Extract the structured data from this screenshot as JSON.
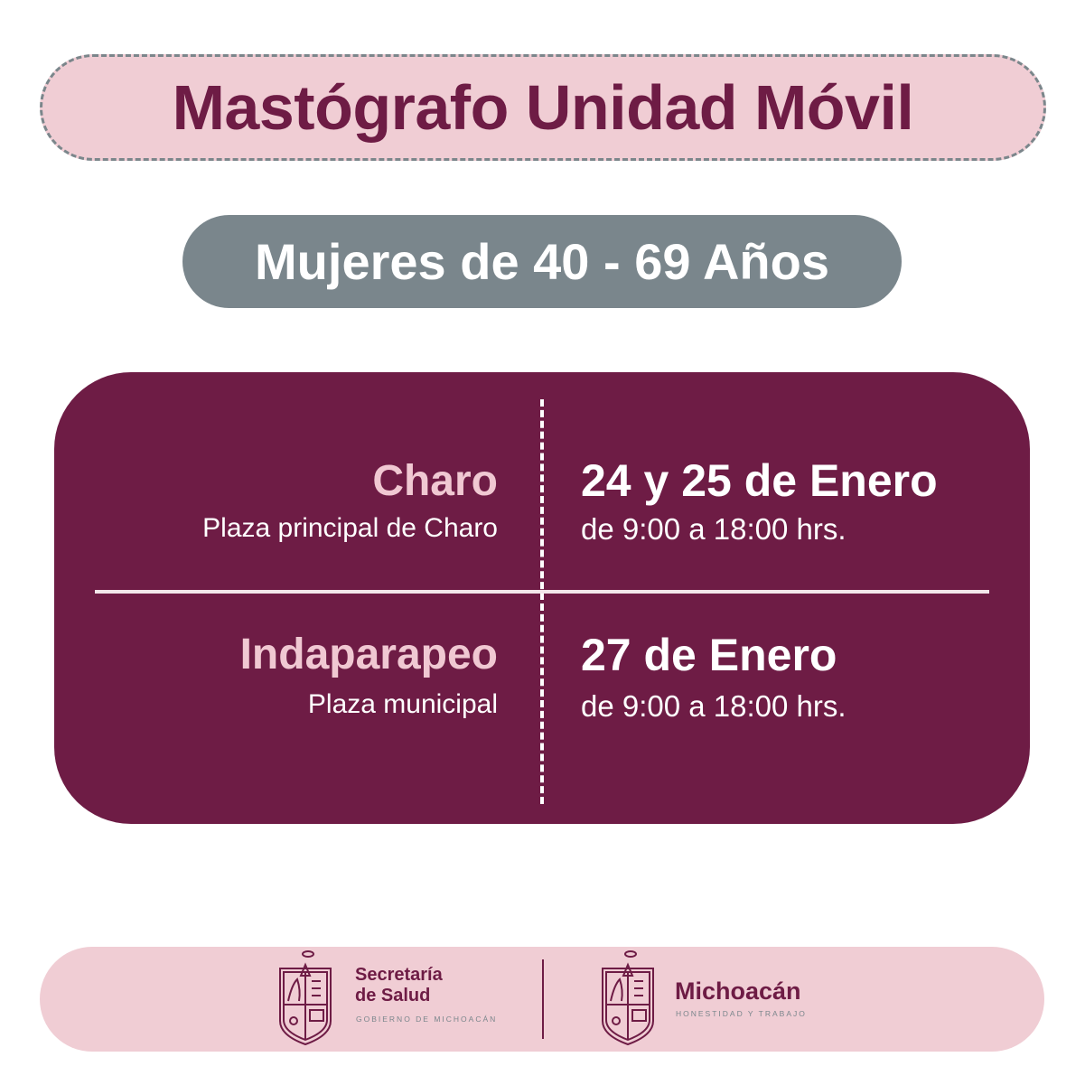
{
  "title": "Mastógrafo Unidad Móvil",
  "audience": "Mujeres de 40 - 69 Años",
  "locations": [
    {
      "name": "Charo",
      "address": "Plaza principal de Charo",
      "date": "24 y 25 de Enero",
      "hours": "de 9:00 a 18:00 hrs."
    },
    {
      "name": "Indaparapeo",
      "address": "Plaza municipal",
      "date": "27 de Enero",
      "hours": "de 9:00 a 18:00 hrs."
    }
  ],
  "footer": {
    "logo1": {
      "line1": "Secretaría",
      "line2": "de Salud",
      "tagline": "GOBIERNO DE MICHOACÁN"
    },
    "logo2": {
      "name": "Michoacán",
      "tagline": "HONESTIDAD Y TRABAJO"
    }
  },
  "colors": {
    "maroon": "#6e1c45",
    "pink": "#f0cdd4",
    "gray": "#7a868c",
    "accent_text": "#f0c8d2"
  }
}
